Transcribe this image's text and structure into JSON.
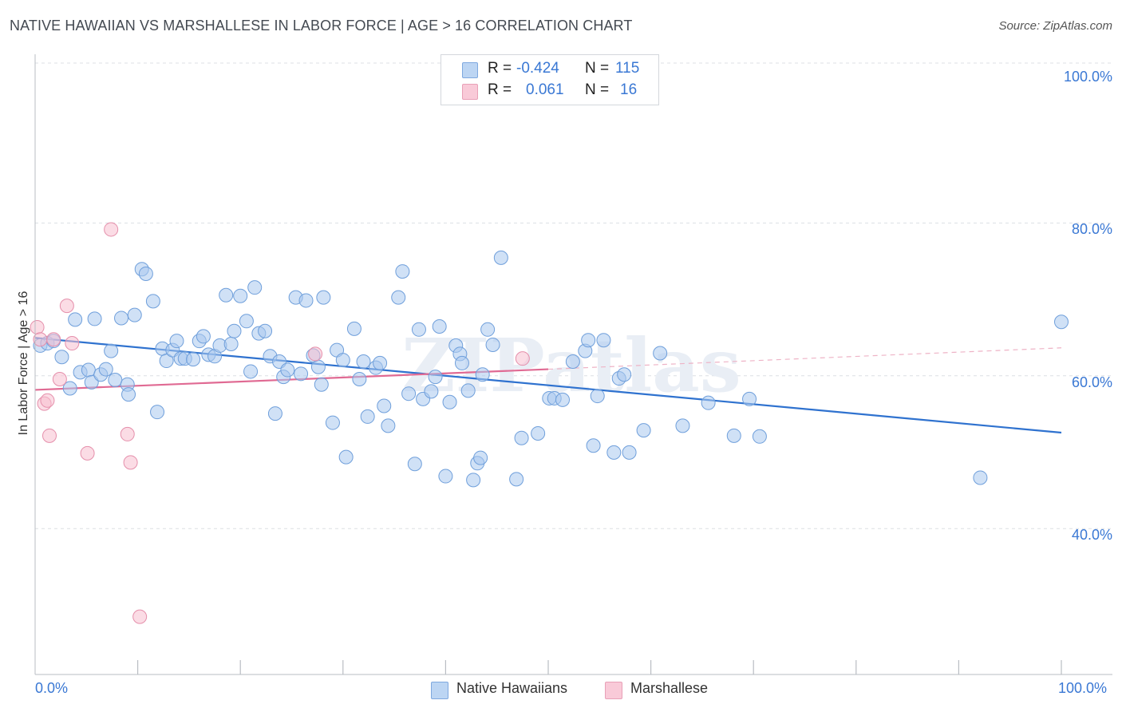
{
  "title": "NATIVE HAWAIIAN VS MARSHALLESE IN LABOR FORCE | AGE > 16 CORRELATION CHART",
  "source": "Source: ZipAtlas.com",
  "watermark": "ZIPatlas",
  "colors": {
    "native_hawaiians": "#a9c8ef",
    "native_hawaiians_stroke": "#6f9fdb",
    "native_hawaiians_line": "#2f72cf",
    "marshallese": "#f7bfd0",
    "marshallese_stroke": "#e58fab",
    "marshallese_line": "#e06a93",
    "axis_text": "#3a78d4",
    "grid": "#dcdfe4"
  },
  "legend": {
    "rows": [
      {
        "r_label": "R =",
        "r_value": "-0.424",
        "n_label": "N =",
        "n_value": "115"
      },
      {
        "r_label": "R =",
        "r_value": "0.061",
        "n_label": "N =",
        "n_value": "16"
      }
    ]
  },
  "bottom_legend": {
    "native_hawaiians": "Native Hawaiians",
    "marshallese": "Marshallese"
  },
  "x_axis": {
    "min_label": "0.0%",
    "max_label": "100.0%"
  },
  "y_axis": {
    "label": "In Labor Force | Age > 16",
    "ticks": [
      {
        "value": 100,
        "label": "100.0%"
      },
      {
        "value": 80,
        "label": "80.0%"
      },
      {
        "value": 60,
        "label": "60.0%"
      },
      {
        "value": 40,
        "label": "40.0%"
      }
    ]
  },
  "chart_data": {
    "type": "scatter",
    "title": "NATIVE HAWAIIAN VS MARSHALLESE IN LABOR FORCE | AGE > 16 CORRELATION CHART",
    "xlabel": "",
    "ylabel": "In Labor Force | Age > 16",
    "xlim": [
      0,
      100
    ],
    "ylim": [
      22,
      102
    ],
    "grid": true,
    "legend_position": "bottom",
    "series": [
      {
        "name": "Native Hawaiians",
        "color": "#a9c8ef",
        "trend": {
          "x0": 0,
          "y0": 65.9,
          "x1": 100,
          "y1": 53.5
        },
        "points": [
          [
            0.5,
            64.9
          ],
          [
            1.2,
            65.2
          ],
          [
            1.8,
            65.5
          ],
          [
            2.6,
            63.4
          ],
          [
            3.4,
            59.3
          ],
          [
            3.9,
            68.3
          ],
          [
            4.4,
            61.4
          ],
          [
            5.2,
            61.7
          ],
          [
            5.5,
            60.1
          ],
          [
            5.8,
            68.4
          ],
          [
            6.4,
            61.1
          ],
          [
            6.9,
            61.8
          ],
          [
            7.4,
            64.2
          ],
          [
            7.8,
            60.4
          ],
          [
            8.4,
            68.5
          ],
          [
            9.0,
            59.8
          ],
          [
            9.1,
            58.5
          ],
          [
            9.7,
            68.9
          ],
          [
            10.4,
            74.9
          ],
          [
            10.8,
            74.3
          ],
          [
            11.5,
            70.7
          ],
          [
            11.9,
            56.2
          ],
          [
            12.4,
            64.5
          ],
          [
            12.8,
            62.9
          ],
          [
            13.4,
            64.3
          ],
          [
            13.8,
            65.5
          ],
          [
            14.2,
            63.2
          ],
          [
            14.6,
            63.2
          ],
          [
            15.4,
            63.1
          ],
          [
            16.0,
            65.5
          ],
          [
            16.4,
            66.1
          ],
          [
            16.9,
            63.7
          ],
          [
            17.5,
            63.5
          ],
          [
            18.0,
            64.9
          ],
          [
            18.6,
            71.5
          ],
          [
            19.1,
            65.1
          ],
          [
            19.4,
            66.8
          ],
          [
            20.0,
            71.4
          ],
          [
            20.6,
            68.1
          ],
          [
            21.0,
            61.5
          ],
          [
            21.4,
            72.5
          ],
          [
            21.8,
            66.5
          ],
          [
            22.4,
            66.8
          ],
          [
            22.9,
            63.5
          ],
          [
            23.4,
            56.0
          ],
          [
            23.8,
            62.8
          ],
          [
            24.2,
            60.8
          ],
          [
            24.6,
            61.7
          ],
          [
            25.4,
            71.2
          ],
          [
            25.9,
            61.2
          ],
          [
            26.4,
            70.8
          ],
          [
            27.1,
            63.6
          ],
          [
            27.6,
            62.1
          ],
          [
            27.9,
            59.8
          ],
          [
            28.1,
            71.2
          ],
          [
            29.0,
            54.8
          ],
          [
            29.4,
            64.3
          ],
          [
            30.0,
            63.0
          ],
          [
            30.3,
            50.3
          ],
          [
            31.1,
            67.1
          ],
          [
            31.6,
            60.5
          ],
          [
            32.0,
            62.8
          ],
          [
            32.4,
            55.6
          ],
          [
            33.2,
            62.0
          ],
          [
            33.6,
            62.6
          ],
          [
            34.0,
            57.0
          ],
          [
            34.4,
            54.4
          ],
          [
            35.4,
            71.2
          ],
          [
            35.8,
            74.6
          ],
          [
            36.4,
            58.6
          ],
          [
            37.0,
            49.4
          ],
          [
            37.4,
            67.0
          ],
          [
            37.8,
            57.9
          ],
          [
            38.6,
            58.9
          ],
          [
            39.0,
            60.8
          ],
          [
            39.4,
            67.4
          ],
          [
            40.0,
            47.8
          ],
          [
            40.4,
            57.5
          ],
          [
            41.0,
            64.9
          ],
          [
            41.4,
            63.8
          ],
          [
            41.6,
            62.6
          ],
          [
            42.2,
            59.0
          ],
          [
            42.7,
            47.3
          ],
          [
            43.1,
            49.5
          ],
          [
            43.4,
            50.2
          ],
          [
            43.6,
            61.1
          ],
          [
            44.1,
            67.0
          ],
          [
            44.6,
            65.0
          ],
          [
            45.4,
            76.4
          ],
          [
            46.9,
            47.4
          ],
          [
            47.4,
            52.8
          ],
          [
            49.0,
            53.4
          ],
          [
            50.1,
            58.0
          ],
          [
            50.6,
            58.0
          ],
          [
            51.4,
            57.8
          ],
          [
            52.4,
            62.8
          ],
          [
            53.6,
            64.2
          ],
          [
            53.9,
            65.6
          ],
          [
            54.4,
            51.8
          ],
          [
            54.8,
            58.3
          ],
          [
            55.4,
            65.6
          ],
          [
            56.4,
            50.9
          ],
          [
            56.9,
            60.6
          ],
          [
            57.4,
            61.1
          ],
          [
            57.9,
            50.9
          ],
          [
            59.3,
            53.8
          ],
          [
            60.9,
            63.9
          ],
          [
            63.1,
            54.4
          ],
          [
            65.6,
            57.4
          ],
          [
            68.1,
            53.1
          ],
          [
            69.6,
            57.9
          ],
          [
            70.6,
            53.0
          ],
          [
            92.1,
            47.6
          ],
          [
            100.0,
            68.0
          ]
        ]
      },
      {
        "name": "Marshallese",
        "color": "#f7bfd0",
        "trend": {
          "x0": 0,
          "y0": 59.1,
          "x1": 50,
          "y1": 61.8
        },
        "trend_extension": {
          "x0": 50,
          "y0": 61.8,
          "x1": 100,
          "y1": 64.6
        },
        "points": [
          [
            0.2,
            67.3
          ],
          [
            0.5,
            65.7
          ],
          [
            0.9,
            57.3
          ],
          [
            1.2,
            57.7
          ],
          [
            1.4,
            53.1
          ],
          [
            1.8,
            65.7
          ],
          [
            2.4,
            60.5
          ],
          [
            3.1,
            70.1
          ],
          [
            3.6,
            65.2
          ],
          [
            5.1,
            50.8
          ],
          [
            7.4,
            80.1
          ],
          [
            9.0,
            53.3
          ],
          [
            9.3,
            49.6
          ],
          [
            10.2,
            29.4
          ],
          [
            27.3,
            63.8
          ],
          [
            47.5,
            63.2
          ]
        ]
      }
    ]
  }
}
